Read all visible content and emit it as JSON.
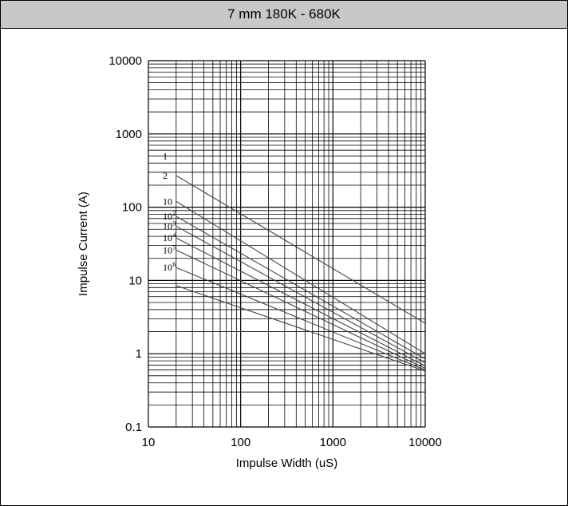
{
  "header": {
    "title": "7 mm 180K - 680K"
  },
  "chart_data": {
    "type": "line",
    "title": "",
    "xlabel": "Impulse Width (uS)",
    "ylabel": "Impulse Current (A)",
    "xscale": "log",
    "yscale": "log",
    "xlim": [
      10,
      10000
    ],
    "ylim": [
      0.1,
      10000
    ],
    "x_ticks": [
      "10",
      "100",
      "1000",
      "10000"
    ],
    "y_ticks": [
      "0.1",
      "1",
      "10",
      "100",
      "1000",
      "10000"
    ],
    "grid": true,
    "series": [
      {
        "name": "1",
        "label_base": "1",
        "label_exp": "",
        "x": [
          20,
          10000
        ],
        "y": [
          500,
          500
        ]
      },
      {
        "name": "2",
        "label_base": "2",
        "label_exp": "",
        "x": [
          20,
          10000
        ],
        "y": [
          270,
          2.6
        ]
      },
      {
        "name": "10",
        "label_base": "10",
        "label_exp": "",
        "x": [
          20,
          10000
        ],
        "y": [
          120,
          1.0
        ]
      },
      {
        "name": "10^2",
        "label_base": "10",
        "label_exp": "2",
        "x": [
          20,
          10000
        ],
        "y": [
          75,
          0.85
        ]
      },
      {
        "name": "10^3",
        "label_base": "10",
        "label_exp": "3",
        "x": [
          20,
          10000
        ],
        "y": [
          55,
          0.75
        ]
      },
      {
        "name": "10^4",
        "label_base": "10",
        "label_exp": "4",
        "x": [
          20,
          10000
        ],
        "y": [
          38,
          0.68
        ]
      },
      {
        "name": "10^5",
        "label_base": "10",
        "label_exp": "5",
        "x": [
          20,
          10000
        ],
        "y": [
          26,
          0.63
        ]
      },
      {
        "name": "10^6",
        "label_base": "10",
        "label_exp": "6",
        "x": [
          20,
          10000
        ],
        "y": [
          15,
          0.6
        ]
      },
      {
        "name": "",
        "label_base": "",
        "label_exp": "",
        "x": [
          20,
          10000
        ],
        "y": [
          8.5,
          0.58
        ]
      }
    ]
  }
}
